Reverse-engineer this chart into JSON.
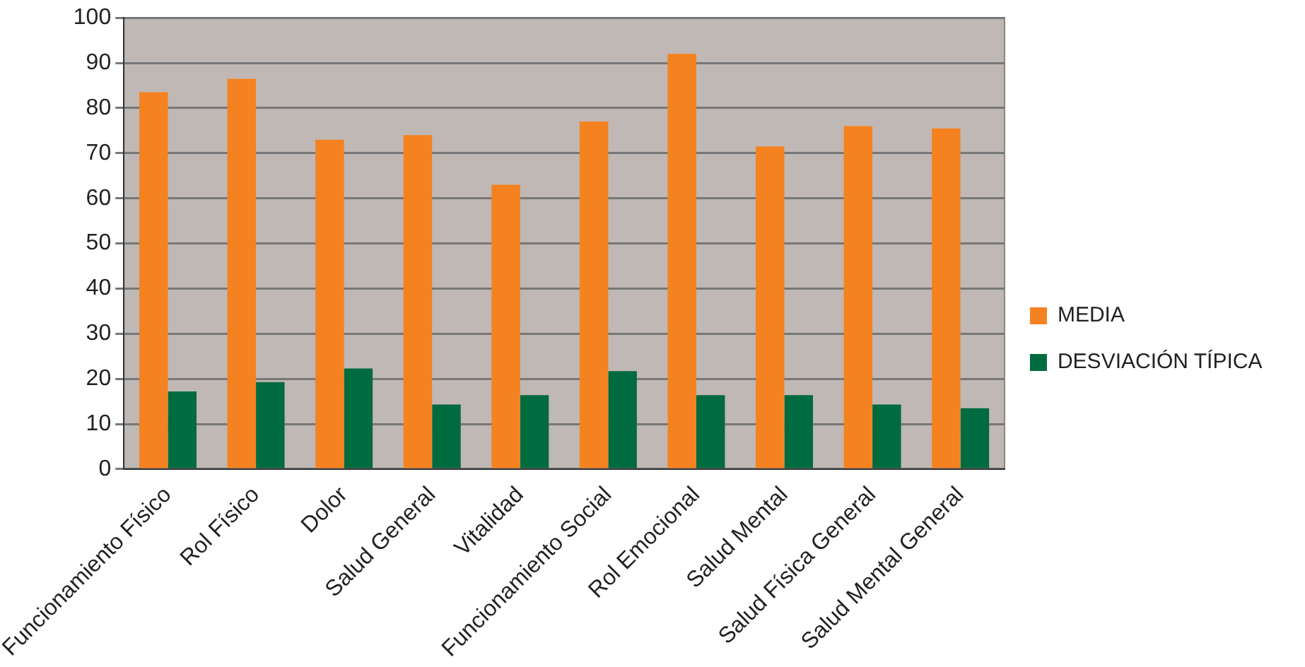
{
  "chart_data": {
    "type": "bar",
    "categories": [
      "Funcionamiento Físico",
      "Rol Físico",
      "Dolor",
      "Salud General",
      "Vitalidad",
      "Funcionamiento Social",
      "Rol Emocional",
      "Salud Mental",
      "Salud Física General",
      "Salud Mental General"
    ],
    "series": [
      {
        "name": "MEDIA",
        "color": "#f58220",
        "values": [
          83.5,
          86.5,
          73,
          74,
          63,
          77,
          92,
          71.5,
          76,
          75.5
        ]
      },
      {
        "name": "DESVIACIÓN TÍPICA",
        "color": "#006b3f",
        "values": [
          17.2,
          19.3,
          22.3,
          14.3,
          16.4,
          21.7,
          16.4,
          16.4,
          14.3,
          13.5
        ]
      }
    ],
    "ylim": [
      0,
      100
    ],
    "yticks": [
      0,
      10,
      20,
      30,
      40,
      50,
      60,
      70,
      80,
      90,
      100
    ],
    "grid": "y",
    "legend": "right"
  }
}
